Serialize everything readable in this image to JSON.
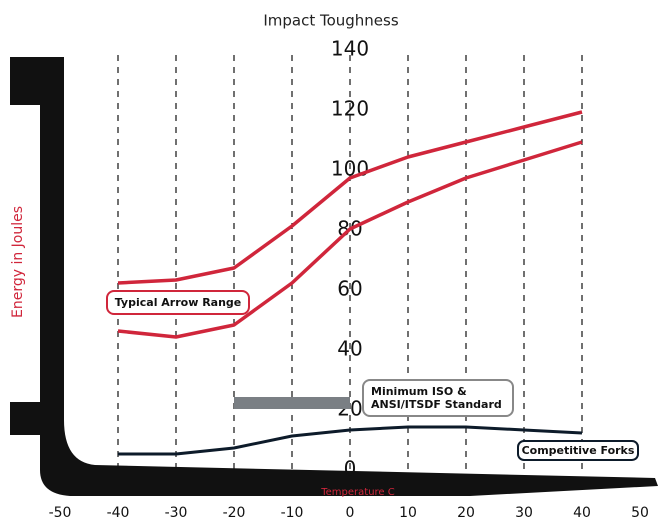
{
  "chart_data": {
    "type": "line",
    "title": "Impact Toughness",
    "x_label": "Temperature C",
    "y_label": "Energy in Joules",
    "x": [
      -40,
      -30,
      -20,
      -10,
      0,
      10,
      20,
      30,
      40
    ],
    "series": [
      {
        "name": "Typical Arrow Range",
        "color": "#d0263b",
        "values": [
          65,
          66,
          70,
          84,
          100,
          107,
          112,
          117,
          122
        ]
      },
      {
        "color": "#d0263b",
        "values": [
          49,
          47,
          51,
          65,
          83,
          92,
          100,
          106,
          112
        ]
      },
      {
        "name": "Competitive Forks",
        "color": "#0d1b2a",
        "values": [
          8,
          8,
          10,
          14,
          16,
          17,
          17,
          16,
          15
        ]
      }
    ],
    "standard": {
      "label": [
        "Minimum ISO &",
        "ANSI/ITSDF Standard"
      ],
      "x": [
        -20,
        0
      ],
      "value": 25,
      "color": "#7a7f84"
    },
    "xlim": [
      -50,
      50
    ],
    "xticks": [
      -50,
      -40,
      -30,
      -20,
      -10,
      0,
      10,
      20,
      30,
      40,
      50
    ],
    "ylim": [
      0,
      140
    ],
    "yticks": [
      0,
      20,
      40,
      60,
      80,
      100,
      120,
      140
    ],
    "grid": true
  }
}
